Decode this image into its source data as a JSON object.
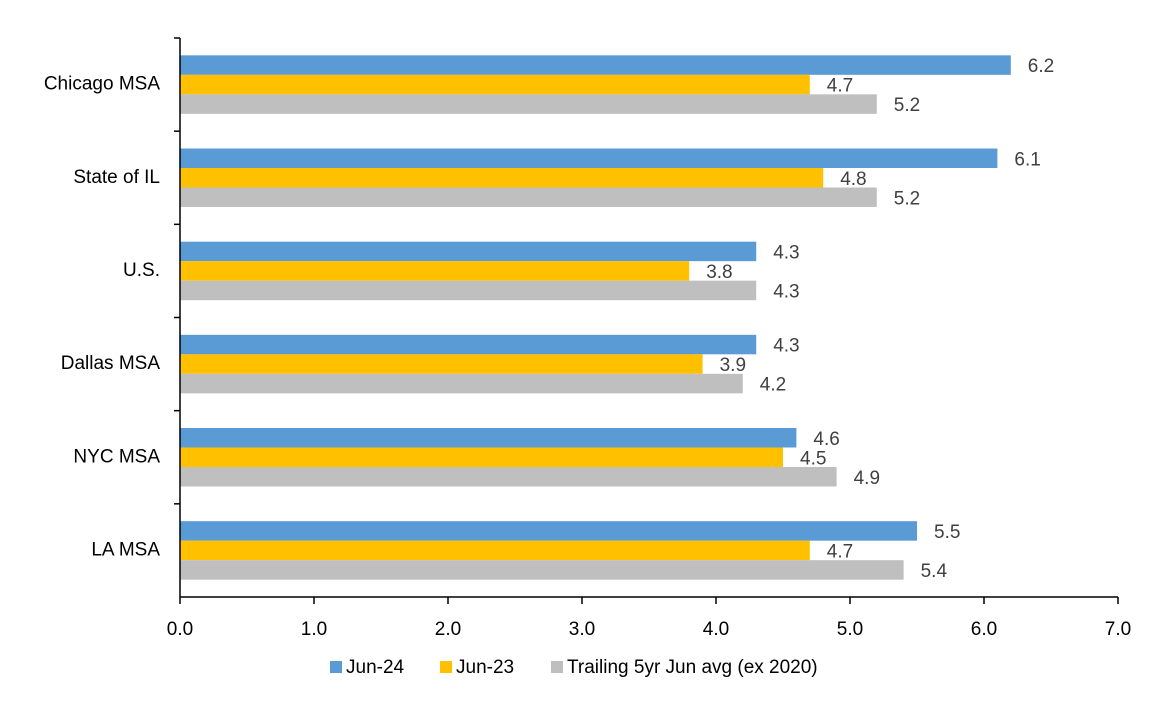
{
  "chart_data": {
    "type": "hbar",
    "categories": [
      "Chicago MSA",
      "State of IL",
      "U.S.",
      "Dallas MSA",
      "NYC MSA",
      "LA MSA"
    ],
    "series": [
      {
        "name": "Jun-24",
        "color": "#5b9bd5",
        "values": [
          6.2,
          6.1,
          4.3,
          4.3,
          4.6,
          5.5
        ]
      },
      {
        "name": "Jun-23",
        "color": "#ffc000",
        "values": [
          4.7,
          4.8,
          3.8,
          3.9,
          4.5,
          4.7
        ]
      },
      {
        "name": "Trailing 5yr Jun avg (ex 2020)",
        "color": "#bfbfbf",
        "values": [
          5.2,
          5.2,
          4.3,
          4.2,
          4.9,
          5.4
        ]
      }
    ],
    "xlim": [
      0,
      7
    ],
    "xticks": [
      {
        "value": 0,
        "label": "0.0"
      },
      {
        "value": 1,
        "label": "1.0"
      },
      {
        "value": 2,
        "label": "2.0"
      },
      {
        "value": 3,
        "label": "3.0"
      },
      {
        "value": 4,
        "label": "4.0"
      },
      {
        "value": 5,
        "label": "5.0"
      },
      {
        "value": 6,
        "label": "6.0"
      },
      {
        "value": 7,
        "label": "7.0"
      }
    ],
    "legend": "bottom"
  }
}
